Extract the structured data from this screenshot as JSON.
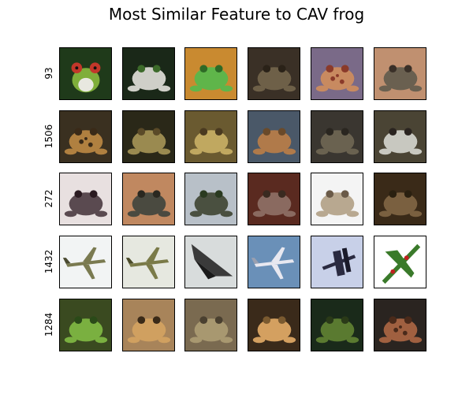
{
  "title": "Most Similar Feature to CAV frog",
  "rows": [
    {
      "label": "93",
      "images": [
        {
          "icon": "red-eyed-tree-frog",
          "bg": "#1f3a1a",
          "fg": "#7fae3a",
          "accent": "#c2372a"
        },
        {
          "icon": "frog-on-leaves",
          "bg": "#1a2818",
          "fg": "#cfcfc8",
          "accent": "#3c6a2a"
        },
        {
          "icon": "green-frog",
          "bg": "#c98a30",
          "fg": "#5fb54a",
          "accent": "#2e6a26"
        },
        {
          "icon": "toad",
          "bg": "#3a3026",
          "fg": "#6e6048",
          "accent": "#2a2218"
        },
        {
          "icon": "spotted-frog",
          "bg": "#7a6a88",
          "fg": "#c88a60",
          "accent": "#8a3a2a"
        },
        {
          "icon": "toad",
          "bg": "#c09070",
          "fg": "#6a6050",
          "accent": "#3a3028"
        }
      ]
    },
    {
      "label": "1506",
      "images": [
        {
          "icon": "spotted-frog",
          "bg": "#3a3020",
          "fg": "#b08040",
          "accent": "#3a2a18"
        },
        {
          "icon": "toad",
          "bg": "#2a2818",
          "fg": "#9a8a50",
          "accent": "#5a4a28"
        },
        {
          "icon": "toad",
          "bg": "#6a5a30",
          "fg": "#c0a860",
          "accent": "#4a3a20"
        },
        {
          "icon": "toad",
          "bg": "#4a5868",
          "fg": "#b07a4a",
          "accent": "#6a4a2a"
        },
        {
          "icon": "toad",
          "bg": "#3a3630",
          "fg": "#6a6250",
          "accent": "#2a2620"
        },
        {
          "icon": "toad",
          "bg": "#4a4434",
          "fg": "#c8c8c0",
          "accent": "#2a2420"
        }
      ]
    },
    {
      "label": "272",
      "images": [
        {
          "icon": "toad",
          "bg": "#e8e0e0",
          "fg": "#5a4a50",
          "accent": "#2a1a20"
        },
        {
          "icon": "toad",
          "bg": "#c08860",
          "fg": "#4a4a40",
          "accent": "#2a2820"
        },
        {
          "icon": "frog-on-rock",
          "bg": "#b8c0c8",
          "fg": "#4a5040",
          "accent": "#2a3a20"
        },
        {
          "icon": "toad",
          "bg": "#5a2a20",
          "fg": "#8a6a60",
          "accent": "#3a2a20"
        },
        {
          "icon": "toad",
          "bg": "#f4f4f4",
          "fg": "#b8a890",
          "accent": "#6a5a48"
        },
        {
          "icon": "toad",
          "bg": "#3a2a18",
          "fg": "#7a6040",
          "accent": "#2a2010"
        }
      ]
    },
    {
      "label": "1432",
      "images": [
        {
          "icon": "fighter-jet",
          "bg": "#f2f4f4",
          "fg": "#7a7a50",
          "accent": "#4a4a30"
        },
        {
          "icon": "fighter-jet",
          "bg": "#e6e8e0",
          "fg": "#7a7a48",
          "accent": "#4a4a28"
        },
        {
          "icon": "stealth-jet",
          "bg": "#d8dcdc",
          "fg": "#3a3a3a",
          "accent": "#1a1a1a"
        },
        {
          "icon": "fighter-jet",
          "bg": "#6a90b8",
          "fg": "#e8e8f0",
          "accent": "#9aa0b0"
        },
        {
          "icon": "biplane",
          "bg": "#c8d0e8",
          "fg": "#2a2a40",
          "accent": "#1a1a2a"
        },
        {
          "icon": "warplane",
          "bg": "#ffffff",
          "fg": "#3a7a2a",
          "accent": "#c02020"
        }
      ]
    },
    {
      "label": "1284",
      "images": [
        {
          "icon": "green-frog",
          "bg": "#3a4a20",
          "fg": "#7ab040",
          "accent": "#2a4a18"
        },
        {
          "icon": "toad",
          "bg": "#a8845a",
          "fg": "#d0a060",
          "accent": "#3a2a18"
        },
        {
          "icon": "toad",
          "bg": "#7a6a50",
          "fg": "#a89870",
          "accent": "#4a4030"
        },
        {
          "icon": "toad",
          "bg": "#3a2a1a",
          "fg": "#d4a060",
          "accent": "#7a5a30"
        },
        {
          "icon": "toad",
          "bg": "#1a2a1a",
          "fg": "#5a7a30",
          "accent": "#2a3a18"
        },
        {
          "icon": "spotted-frog",
          "bg": "#2a2420",
          "fg": "#a06040",
          "accent": "#4a2a1a"
        }
      ]
    }
  ]
}
